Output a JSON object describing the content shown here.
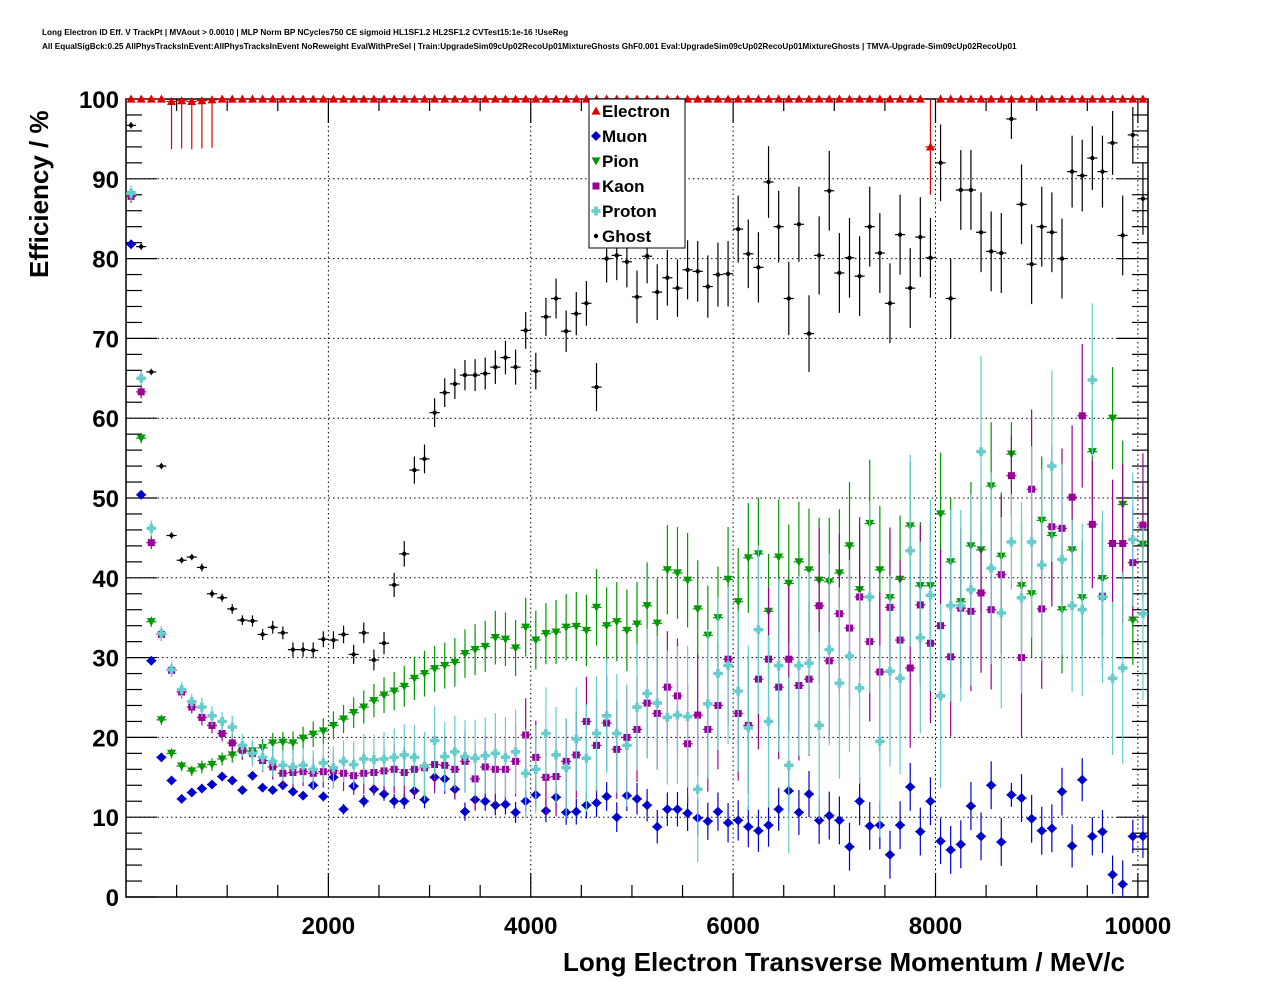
{
  "chart_data": {
    "type": "scatter",
    "title": "Long Electron ID Eff. V TrackPt | MVAout > 0.0010 | MLP Norm BP NCycles750 CE sigmoid HL1SF1.2 HL2SF1.2 CVTest15:1e-16 !UseReg",
    "subtitle": "All EqualSigBck:0.25 AllPhysTracksInEvent:AllPhysTracksInEvent NoReweight EvalWithPreSel | Train:UpgradeSim09cUp02RecoUp01MixtureGhosts GhF0.001 Eval:UpgradeSim09cUp02RecoUp01MixtureGhosts | TMVA-Upgrade-Sim09cUp02RecoUp01",
    "xlabel": "Long Electron Transverse Momentum / MeV/c",
    "ylabel": "Efficiency / %",
    "xlim": [
      0,
      10100
    ],
    "ylim": [
      0,
      100
    ],
    "bin_width": 100,
    "x_ticks": [
      "2000",
      "4000",
      "6000",
      "8000",
      "10000"
    ],
    "y_ticks": [
      "0",
      "10",
      "20",
      "30",
      "40",
      "50",
      "60",
      "70",
      "80",
      "90",
      "100"
    ],
    "grid": true,
    "legend_position": "top-center",
    "yerr_profile": [
      0.4,
      0.4,
      0.4,
      0.4,
      0.4,
      0.4,
      0.4,
      0.5,
      0.5,
      0.5,
      0.6,
      0.6,
      0.7,
      0.7,
      0.8,
      0.8,
      0.9,
      0.9,
      1.0,
      1.0,
      1.1,
      1.1,
      1.2,
      1.3,
      1.3,
      1.4,
      1.5,
      1.6,
      1.7,
      1.8,
      1.8,
      1.8,
      1.9,
      1.9,
      2.0,
      2.0,
      2.1,
      2.1,
      2.2,
      2.3,
      2.3,
      2.4,
      2.5,
      2.6,
      2.7,
      2.8,
      3.0,
      3.0,
      3.1,
      3.2,
      3.3,
      3.4,
      3.5,
      3.5,
      3.6,
      3.7,
      3.8,
      3.9,
      4.0,
      4.1,
      4.2,
      4.3,
      4.4,
      4.5,
      4.5,
      4.6,
      4.7,
      4.8,
      4.9,
      5.0,
      5.0,
      5.0,
      5.0,
      5.0,
      5.0,
      5.0,
      5.0,
      5.0,
      5.0,
      5.0,
      4.8,
      5.0,
      5.0,
      5.0,
      5.0,
      5.0,
      5.0,
      2.5,
      5.0,
      5.0,
      5.0,
      5.0,
      5.0,
      4.5,
      4.5,
      4.0,
      4.5,
      4.0,
      5.0,
      3.5,
      4.5
    ],
    "series": [
      {
        "name": "Electron",
        "marker": "triangle-up",
        "color": "#dd0000",
        "yerr_scale": 0.0,
        "values": [
          100,
          100,
          100,
          100,
          99.7,
          99.8,
          99.7,
          99.8,
          99.9,
          100,
          100,
          100,
          100,
          100,
          100,
          100,
          100,
          100,
          100,
          100,
          100,
          100,
          100,
          100,
          100,
          100,
          100,
          100,
          100,
          100,
          100,
          100,
          100,
          100,
          100,
          100,
          100,
          100,
          100,
          100,
          100,
          100,
          100,
          100,
          100,
          100,
          100,
          100,
          100,
          100,
          100,
          100,
          100,
          100,
          100,
          100,
          100,
          100,
          100,
          100,
          100,
          100,
          100,
          100,
          100,
          100,
          100,
          100,
          100,
          100,
          100,
          100,
          100,
          100,
          100,
          100,
          100,
          100,
          100,
          94.0,
          100,
          100,
          100,
          100,
          100,
          100,
          100,
          100,
          100,
          100,
          100,
          100,
          100,
          100,
          100,
          100,
          100,
          100,
          100,
          100,
          100
        ]
      },
      {
        "name": "Muon",
        "marker": "circle",
        "color": "#0000cc",
        "yerr_scale": 0.6,
        "values": [
          81.8,
          50.4,
          29.6,
          17.5,
          14.6,
          12.3,
          13.1,
          13.6,
          14.1,
          15.1,
          14.6,
          13.4,
          15.2,
          13.7,
          13.4,
          14.0,
          13.2,
          12.7,
          14.0,
          12.6,
          15.0,
          11.0,
          13.9,
          12.0,
          13.5,
          12.9,
          12.0,
          12.0,
          13.3,
          12.2,
          15.0,
          14.8,
          13.5,
          10.7,
          12.2,
          12.0,
          11.5,
          11.6,
          10.6,
          12.0,
          12.8,
          10.8,
          12.5,
          10.6,
          10.7,
          11.5,
          11.8,
          12.6,
          10.0,
          12.7,
          12.3,
          11.5,
          8.8,
          11.0,
          11.0,
          10.5,
          9.9,
          9.5,
          10.7,
          9.3,
          9.6,
          8.8,
          8.3,
          9.0,
          11.0,
          13.3,
          10.6,
          12.9,
          9.6,
          10.2,
          9.6,
          6.3,
          12.0,
          8.9,
          9.0,
          5.3,
          9.0,
          13.8,
          8.2,
          12.0,
          7.0,
          5.9,
          6.6,
          11.4,
          7.6,
          14.0,
          6.9,
          12.8,
          12.4,
          9.8,
          8.3,
          8.6,
          13.2,
          6.4,
          14.7,
          7.6,
          8.2,
          2.8,
          1.6,
          7.6,
          7.6
        ]
      },
      {
        "name": "Pion",
        "marker": "triangle-down",
        "color": "#009900",
        "yerr_scale": 1.6,
        "values": [
          88.0,
          57.5,
          34.5,
          22.2,
          18.0,
          16.4,
          15.8,
          16.3,
          16.6,
          17.3,
          17.8,
          18.2,
          18.3,
          18.7,
          19.3,
          19.4,
          19.3,
          19.9,
          20.4,
          20.8,
          21.5,
          22.3,
          23.1,
          23.8,
          24.6,
          25.3,
          25.8,
          26.4,
          27.4,
          28.0,
          28.6,
          29.0,
          29.4,
          30.5,
          31.0,
          31.4,
          32.5,
          32.3,
          31.2,
          33.8,
          32.2,
          33.0,
          33.2,
          33.8,
          33.9,
          33.4,
          36.3,
          34.0,
          34.5,
          33.4,
          34.2,
          36.5,
          34.3,
          41.0,
          40.6,
          39.7,
          36.1,
          32.8,
          35.0,
          39.8,
          37.0,
          42.5,
          43.0,
          35.8,
          42.6,
          39.3,
          42.0,
          41.0,
          39.7,
          39.5,
          40.6,
          44.0,
          38.5,
          46.8,
          41.0,
          37.5,
          39.8,
          46.5,
          39.0,
          39.0,
          48.0,
          42.0,
          37.0,
          44.0,
          43.5,
          51.5,
          42.7,
          55.5,
          39.0,
          38.0,
          47.2,
          45.3,
          36.0,
          43.5,
          37.5,
          55.8,
          39.9,
          60.0,
          49.2,
          34.7,
          44.2
        ]
      },
      {
        "name": "Kaon",
        "marker": "square",
        "color": "#990099",
        "yerr_scale": 2.0,
        "values": [
          87.8,
          63.3,
          44.4,
          32.9,
          28.4,
          25.7,
          23.8,
          22.5,
          21.5,
          20.5,
          19.3,
          18.4,
          18.0,
          17.1,
          16.3,
          15.5,
          15.6,
          15.7,
          15.5,
          15.7,
          15.8,
          15.5,
          15.2,
          15.5,
          15.6,
          15.8,
          16.0,
          15.6,
          16.0,
          16.2,
          16.6,
          16.5,
          16.0,
          17.0,
          14.8,
          16.3,
          16.0,
          16.0,
          17.0,
          20.3,
          17.5,
          15.0,
          15.1,
          17.0,
          17.8,
          22.0,
          19.0,
          21.8,
          18.5,
          20.0,
          21.0,
          24.3,
          23.0,
          26.3,
          25.2,
          19.2,
          22.8,
          21.0,
          24.0,
          29.8,
          23.0,
          21.5,
          27.3,
          29.8,
          26.3,
          29.8,
          26.5,
          27.3,
          36.5,
          29.6,
          35.5,
          33.7,
          37.6,
          32.0,
          28.2,
          36.3,
          32.2,
          28.7,
          36.6,
          31.8,
          34.0,
          30.1,
          36.2,
          35.8,
          38.1,
          36.0,
          40.4,
          52.8,
          30.0,
          51.1,
          36.1,
          46.4,
          46.2,
          50.1,
          60.3,
          46.7,
          37.7,
          44.3,
          44.3,
          41.9,
          46.6
        ]
      },
      {
        "name": "Proton",
        "marker": "cross",
        "color": "#66cccc",
        "yerr_scale": 2.4,
        "values": [
          88.2,
          65.0,
          46.2,
          33.0,
          28.5,
          26.0,
          24.5,
          23.8,
          22.7,
          22.0,
          21.3,
          19.0,
          18.0,
          17.5,
          17.0,
          16.5,
          16.3,
          16.5,
          16.0,
          16.8,
          16.2,
          17.0,
          16.6,
          17.3,
          17.2,
          17.3,
          17.5,
          17.8,
          17.5,
          16.4,
          19.6,
          17.6,
          18.2,
          17.6,
          17.4,
          17.7,
          18.0,
          17.5,
          18.2,
          15.5,
          16.0,
          20.5,
          17.8,
          16.2,
          19.8,
          17.4,
          20.5,
          22.7,
          20.5,
          19.0,
          23.8,
          25.5,
          24.3,
          22.5,
          22.8,
          22.6,
          13.5,
          24.2,
          28.0,
          29.0,
          25.8,
          21.2,
          33.5,
          22.0,
          29.0,
          16.5,
          29.0,
          29.3,
          21.5,
          31.0,
          26.8,
          30.2,
          26.2,
          37.6,
          19.5,
          28.3,
          27.4,
          43.4,
          32.5,
          37.8,
          25.2,
          36.5,
          36.5,
          38.5,
          55.8,
          41.2,
          35.6,
          44.5,
          37.5,
          44.5,
          41.6,
          54.0,
          42.3,
          36.5,
          36.0,
          64.8,
          37.6,
          27.4,
          28.7,
          44.8,
          35.5
        ]
      },
      {
        "name": "Ghost",
        "marker": "dot",
        "color": "#000000",
        "yerr_scale": 1.0,
        "values": [
          96.7,
          81.5,
          65.8,
          54.0,
          45.3,
          42.2,
          42.6,
          41.3,
          38.0,
          37.5,
          36.1,
          34.7,
          34.6,
          32.9,
          33.8,
          33.1,
          31.0,
          31.0,
          30.9,
          32.3,
          32.2,
          32.9,
          30.4,
          33.1,
          29.7,
          31.8,
          39.1,
          43.0,
          53.5,
          54.9,
          60.7,
          63.2,
          64.3,
          65.4,
          65.4,
          65.6,
          66.4,
          67.6,
          66.4,
          71.0,
          65.9,
          72.7,
          75.0,
          70.9,
          73.1,
          74.4,
          63.9,
          80.0,
          80.4,
          79.6,
          75.2,
          80.3,
          75.8,
          77.6,
          76.3,
          78.6,
          78.4,
          76.5,
          78.0,
          78.1,
          83.7,
          80.6,
          78.9,
          89.6,
          84.0,
          75.0,
          84.3,
          70.6,
          80.4,
          88.5,
          78.2,
          80.1,
          77.8,
          84.0,
          80.7,
          74.4,
          83.0,
          76.3,
          82.7,
          80.1,
          92.0,
          75.0,
          88.6,
          88.6,
          83.3,
          80.9,
          80.7,
          97.5,
          86.8,
          79.3,
          84.0,
          83.3,
          80.0,
          90.9,
          90.4,
          92.6,
          90.9,
          94.5,
          82.9,
          95.5,
          87.5
        ]
      }
    ]
  }
}
